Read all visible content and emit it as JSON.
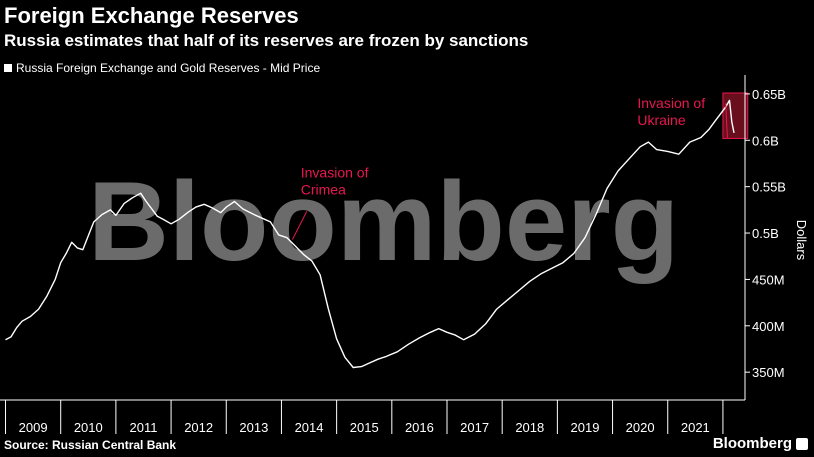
{
  "header": {
    "title": "Foreign Exchange Reserves",
    "subtitle": "Russia estimates that half of its reserves are frozen by sanctions"
  },
  "footer": {
    "source": "Source: Russian Central Bank",
    "brand": "Bloomberg"
  },
  "watermark_text": "Bloomberg",
  "colors": {
    "background": "#000000",
    "line": "#ffffff",
    "annotation": "#e8174f",
    "highlight_box": "#7a1022",
    "watermark": "#6b6b6b"
  },
  "chart_data": {
    "type": "line",
    "legend": "Russia Foreign Exchange and Gold Reserves - Mid Price",
    "legend_position": "top-left",
    "ylabel": "Dollars",
    "y_axis_side": "right",
    "ylim": [
      320,
      665
    ],
    "yticks": [
      {
        "value": 350,
        "label": "350M"
      },
      {
        "value": 400,
        "label": "400M"
      },
      {
        "value": 450,
        "label": "450M"
      },
      {
        "value": 500,
        "label": "0.5B"
      },
      {
        "value": 550,
        "label": "0.55B"
      },
      {
        "value": 600,
        "label": "0.6B"
      },
      {
        "value": 650,
        "label": "0.65B"
      }
    ],
    "xlim": [
      2008.9,
      2022.4
    ],
    "xticks": [
      {
        "value": 2009.5,
        "label": "2009"
      },
      {
        "value": 2010.5,
        "label": "2010"
      },
      {
        "value": 2011.5,
        "label": "2011"
      },
      {
        "value": 2012.5,
        "label": "2012"
      },
      {
        "value": 2013.5,
        "label": "2013"
      },
      {
        "value": 2014.5,
        "label": "2014"
      },
      {
        "value": 2015.5,
        "label": "2015"
      },
      {
        "value": 2016.5,
        "label": "2016"
      },
      {
        "value": 2017.5,
        "label": "2017"
      },
      {
        "value": 2018.5,
        "label": "2018"
      },
      {
        "value": 2019.5,
        "label": "2019"
      },
      {
        "value": 2020.5,
        "label": "2020"
      },
      {
        "value": 2021.5,
        "label": "2021"
      }
    ],
    "grid": false,
    "series": [
      {
        "name": "Russia Foreign Exchange and Gold Reserves - Mid Price",
        "x": [
          2009.0,
          2009.1,
          2009.2,
          2009.3,
          2009.45,
          2009.6,
          2009.75,
          2009.9,
          2010.0,
          2010.1,
          2010.2,
          2010.3,
          2010.4,
          2010.5,
          2010.6,
          2010.75,
          2010.9,
          2011.0,
          2011.15,
          2011.3,
          2011.45,
          2011.55,
          2011.65,
          2011.75,
          2011.85,
          2012.0,
          2012.15,
          2012.3,
          2012.45,
          2012.6,
          2012.75,
          2012.9,
          2013.0,
          2013.15,
          2013.3,
          2013.5,
          2013.65,
          2013.8,
          2013.95,
          2014.1,
          2014.25,
          2014.4,
          2014.55,
          2014.7,
          2014.85,
          2015.0,
          2015.15,
          2015.3,
          2015.45,
          2015.6,
          2015.75,
          2015.9,
          2016.1,
          2016.3,
          2016.5,
          2016.7,
          2016.85,
          2017.0,
          2017.15,
          2017.3,
          2017.5,
          2017.7,
          2017.9,
          2018.1,
          2018.3,
          2018.5,
          2018.7,
          2018.9,
          2019.1,
          2019.3,
          2019.5,
          2019.7,
          2019.9,
          2020.1,
          2020.3,
          2020.5,
          2020.65,
          2020.8,
          2021.0,
          2021.2,
          2021.4,
          2021.6,
          2021.75,
          2021.85,
          2021.95,
          2022.05,
          2022.12,
          2022.16,
          2022.2
        ],
        "y": [
          385,
          388,
          398,
          405,
          410,
          418,
          432,
          450,
          468,
          478,
          490,
          484,
          482,
          497,
          512,
          520,
          525,
          519,
          532,
          538,
          543,
          534,
          526,
          518,
          515,
          510,
          515,
          522,
          528,
          531,
          527,
          522,
          528,
          534,
          526,
          520,
          516,
          512,
          498,
          495,
          486,
          477,
          470,
          455,
          418,
          386,
          366,
          355,
          356,
          360,
          364,
          367,
          372,
          380,
          387,
          393,
          397,
          393,
          390,
          385,
          391,
          402,
          418,
          428,
          438,
          448,
          456,
          462,
          468,
          478,
          495,
          520,
          548,
          567,
          580,
          593,
          598,
          590,
          588,
          585,
          598,
          603,
          612,
          620,
          628,
          636,
          643,
          620,
          608
        ]
      }
    ],
    "annotations": [
      {
        "label_lines": [
          "Invasion of",
          "Crimea"
        ],
        "target_x": 2014.2,
        "target_y": 493,
        "text_x": 2014.35,
        "text_y": 560
      },
      {
        "label_lines": [
          "Invasion of",
          "Ukraine"
        ],
        "target_x": 2022.05,
        "target_y": 640,
        "text_x": 2020.45,
        "text_y": 635
      }
    ],
    "highlight_region": {
      "x0": 2022.0,
      "x1": 2022.45,
      "y0": 602,
      "y1": 651
    }
  }
}
